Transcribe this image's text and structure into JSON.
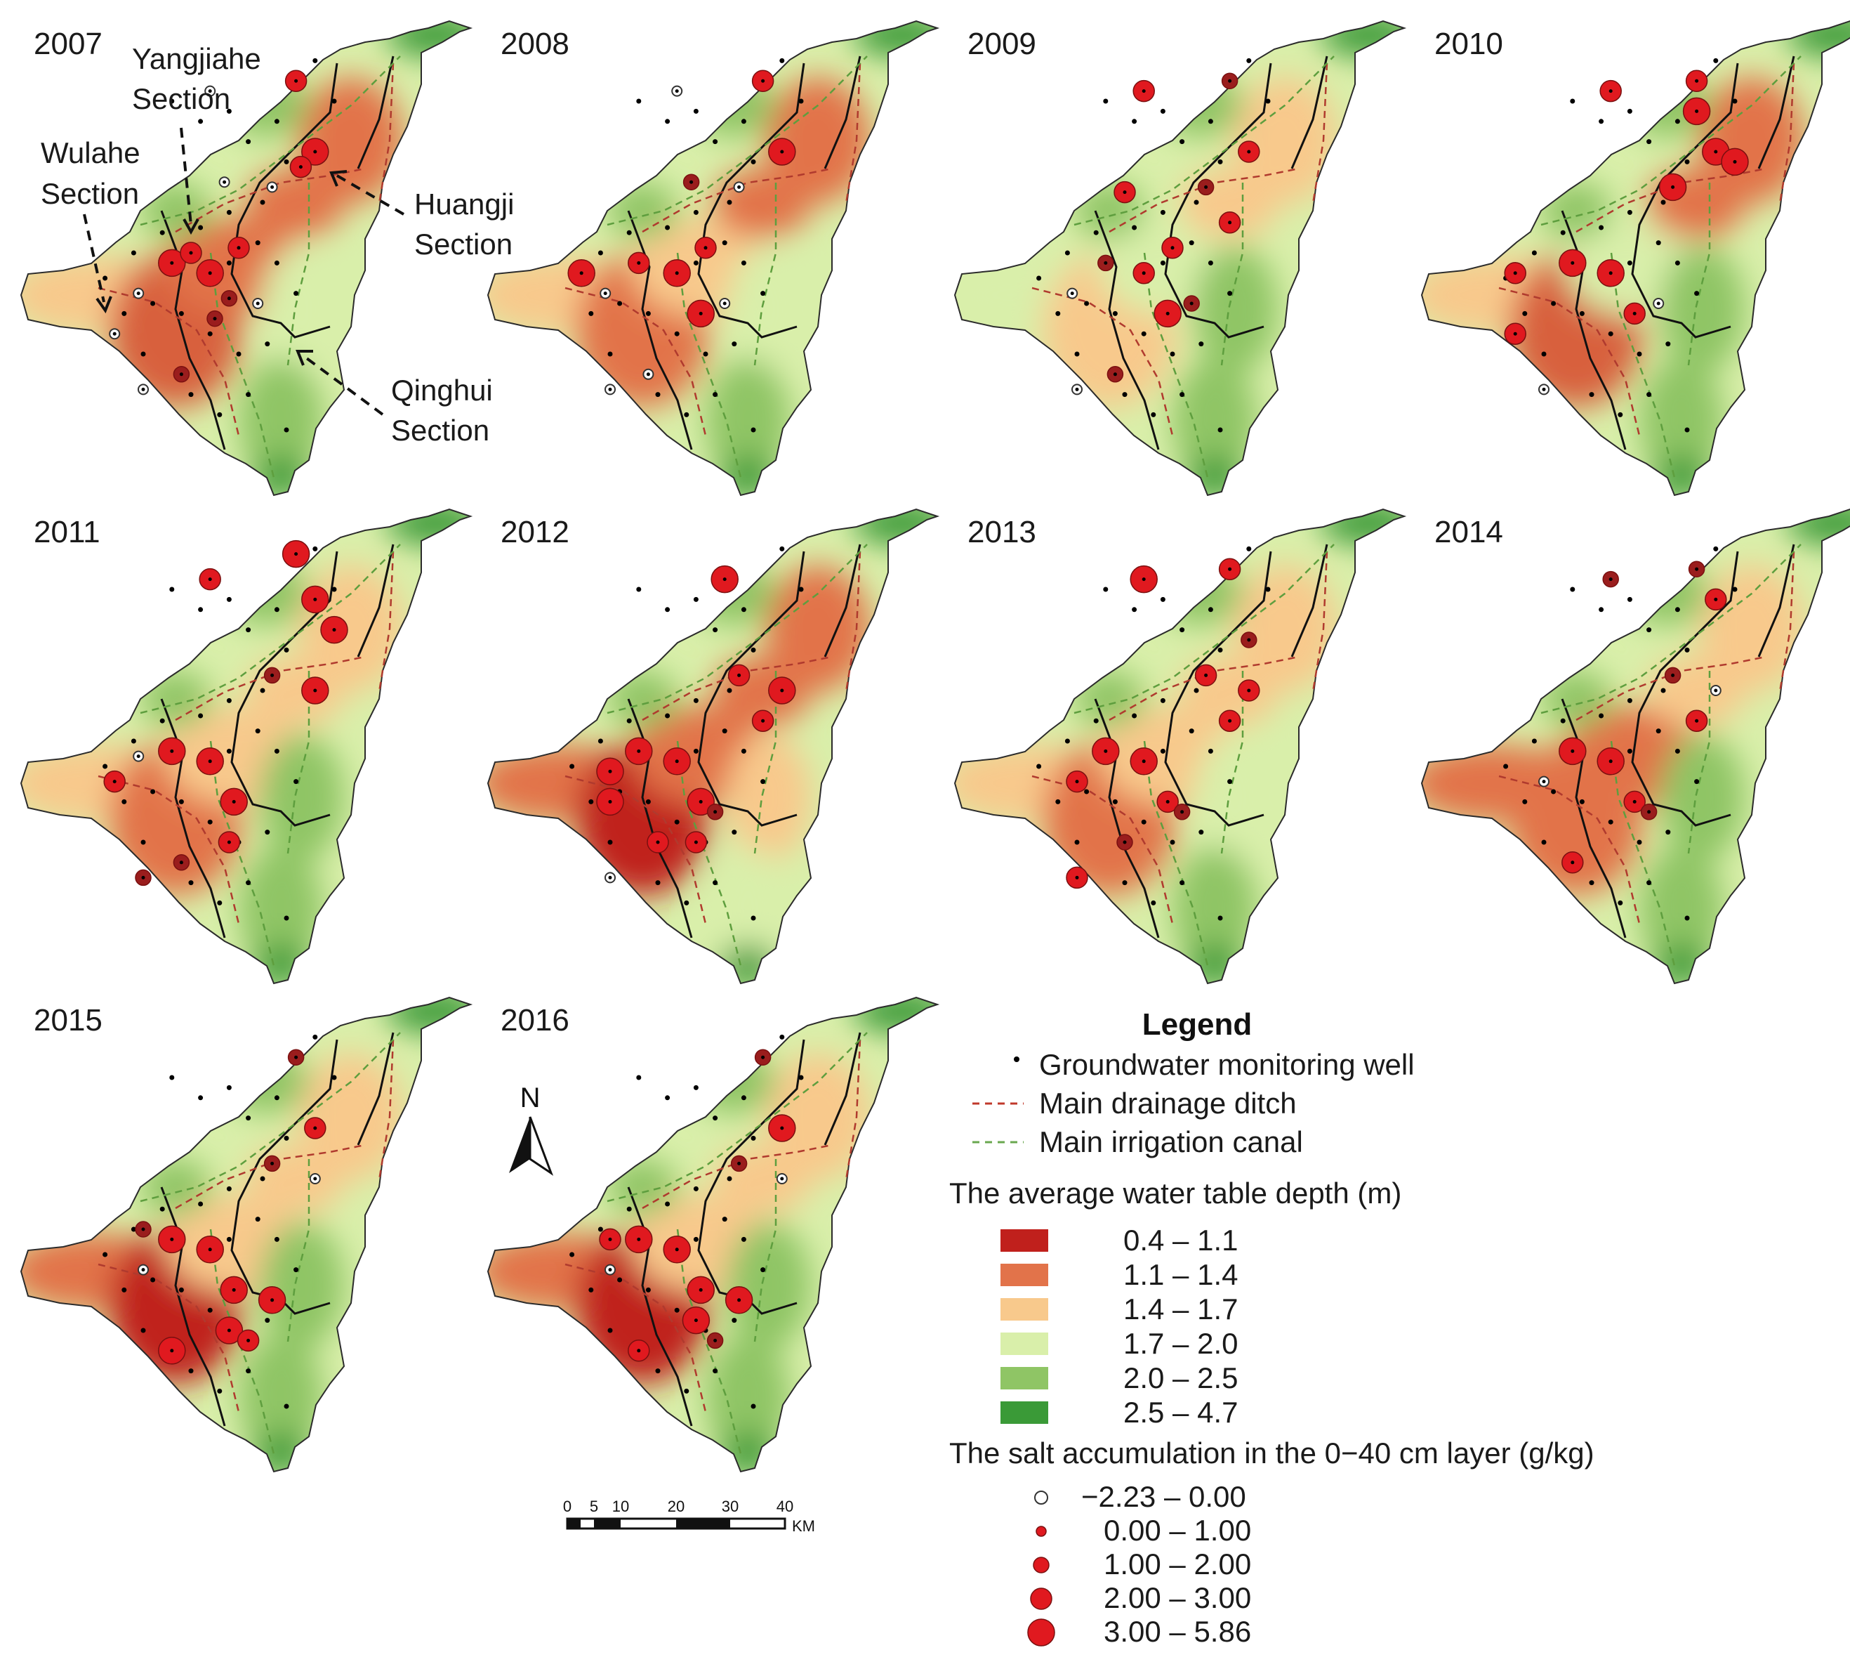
{
  "panels": [
    {
      "year": "2007",
      "profile": {
        "ne": "orange",
        "center": "orange",
        "sw": "orangeDark",
        "south": "green",
        "west": "peach",
        "east": "lightgreen"
      },
      "salt": [
        [
          0.62,
          0.16,
          2
        ],
        [
          0.66,
          0.3,
          3
        ],
        [
          0.63,
          0.33,
          2
        ],
        [
          0.36,
          0.52,
          3
        ],
        [
          0.44,
          0.54,
          3
        ],
        [
          0.5,
          0.49,
          2
        ],
        [
          0.48,
          0.59,
          1
        ],
        [
          0.24,
          0.66,
          0
        ],
        [
          0.29,
          0.58,
          0
        ],
        [
          0.45,
          0.63,
          1
        ],
        [
          0.38,
          0.74,
          1
        ],
        [
          0.54,
          0.6,
          0
        ],
        [
          0.3,
          0.77,
          0
        ],
        [
          0.47,
          0.36,
          0
        ],
        [
          0.44,
          0.18,
          0
        ],
        [
          0.57,
          0.37,
          0
        ],
        [
          0.4,
          0.5,
          2
        ]
      ]
    },
    {
      "year": "2008",
      "profile": {
        "ne": "orange",
        "center": "peach",
        "sw": "orange",
        "south": "green",
        "west": "peach",
        "east": "lightgreen"
      },
      "salt": [
        [
          0.62,
          0.16,
          2
        ],
        [
          0.66,
          0.3,
          3
        ],
        [
          0.36,
          0.52,
          2
        ],
        [
          0.44,
          0.54,
          3
        ],
        [
          0.49,
          0.62,
          3
        ],
        [
          0.5,
          0.49,
          2
        ],
        [
          0.24,
          0.54,
          3
        ],
        [
          0.29,
          0.58,
          0
        ],
        [
          0.3,
          0.77,
          0
        ],
        [
          0.38,
          0.74,
          0
        ],
        [
          0.54,
          0.6,
          0
        ],
        [
          0.44,
          0.18,
          0
        ],
        [
          0.57,
          0.37,
          0
        ],
        [
          0.47,
          0.36,
          1
        ]
      ]
    },
    {
      "year": "2009",
      "profile": {
        "ne": "peach",
        "center": "lightgreen",
        "sw": "peach",
        "south": "green",
        "west": "lightgreen",
        "east": "green"
      },
      "salt": [
        [
          0.62,
          0.16,
          1
        ],
        [
          0.5,
          0.49,
          2
        ],
        [
          0.44,
          0.54,
          2
        ],
        [
          0.49,
          0.62,
          3
        ],
        [
          0.57,
          0.37,
          1
        ],
        [
          0.66,
          0.3,
          2
        ],
        [
          0.4,
          0.38,
          2
        ],
        [
          0.29,
          0.58,
          0
        ],
        [
          0.3,
          0.77,
          0
        ],
        [
          0.38,
          0.74,
          1
        ],
        [
          0.54,
          0.6,
          1
        ],
        [
          0.44,
          0.18,
          2
        ],
        [
          0.36,
          0.52,
          1
        ],
        [
          0.62,
          0.44,
          2
        ]
      ]
    },
    {
      "year": "2010",
      "profile": {
        "ne": "orange",
        "center": "lightgreen",
        "sw": "orangeDark",
        "south": "green",
        "west": "peach",
        "east": "green"
      },
      "salt": [
        [
          0.62,
          0.16,
          2
        ],
        [
          0.66,
          0.3,
          3
        ],
        [
          0.7,
          0.32,
          3
        ],
        [
          0.36,
          0.52,
          3
        ],
        [
          0.44,
          0.54,
          3
        ],
        [
          0.49,
          0.62,
          2
        ],
        [
          0.24,
          0.54,
          2
        ],
        [
          0.24,
          0.66,
          2
        ],
        [
          0.3,
          0.77,
          0
        ],
        [
          0.54,
          0.6,
          0
        ],
        [
          0.44,
          0.18,
          2
        ],
        [
          0.57,
          0.37,
          3
        ],
        [
          0.62,
          0.22,
          3
        ]
      ]
    },
    {
      "year": "2011",
      "profile": {
        "ne": "peach",
        "center": "peach",
        "sw": "orange",
        "south": "green",
        "west": "peach",
        "east": "green"
      },
      "salt": [
        [
          0.62,
          0.13,
          3
        ],
        [
          0.66,
          0.22,
          3
        ],
        [
          0.7,
          0.28,
          3
        ],
        [
          0.66,
          0.4,
          3
        ],
        [
          0.36,
          0.52,
          3
        ],
        [
          0.44,
          0.54,
          3
        ],
        [
          0.49,
          0.62,
          3
        ],
        [
          0.48,
          0.7,
          2
        ],
        [
          0.24,
          0.58,
          2
        ],
        [
          0.3,
          0.77,
          1
        ],
        [
          0.44,
          0.18,
          2
        ],
        [
          0.57,
          0.37,
          1
        ],
        [
          0.29,
          0.53,
          0
        ],
        [
          0.38,
          0.74,
          1
        ]
      ]
    },
    {
      "year": "2012",
      "profile": {
        "ne": "orange",
        "center": "orange",
        "sw": "red",
        "south": "lightgreen",
        "west": "orange",
        "east": "peach"
      },
      "salt": [
        [
          0.54,
          0.18,
          3
        ],
        [
          0.66,
          0.4,
          3
        ],
        [
          0.62,
          0.46,
          2
        ],
        [
          0.36,
          0.52,
          3
        ],
        [
          0.44,
          0.54,
          3
        ],
        [
          0.49,
          0.62,
          3
        ],
        [
          0.48,
          0.7,
          2
        ],
        [
          0.3,
          0.56,
          3
        ],
        [
          0.3,
          0.62,
          3
        ],
        [
          0.3,
          0.77,
          0
        ],
        [
          0.57,
          0.37,
          2
        ],
        [
          0.52,
          0.64,
          1
        ],
        [
          0.4,
          0.7,
          2
        ]
      ]
    },
    {
      "year": "2013",
      "profile": {
        "ne": "peach",
        "center": "peach",
        "sw": "orange",
        "south": "green",
        "west": "peach",
        "east": "lightgreen"
      },
      "salt": [
        [
          0.62,
          0.16,
          2
        ],
        [
          0.44,
          0.18,
          3
        ],
        [
          0.36,
          0.52,
          3
        ],
        [
          0.44,
          0.54,
          3
        ],
        [
          0.49,
          0.62,
          2
        ],
        [
          0.3,
          0.58,
          2
        ],
        [
          0.3,
          0.77,
          2
        ],
        [
          0.57,
          0.37,
          2
        ],
        [
          0.66,
          0.4,
          2
        ],
        [
          0.62,
          0.46,
          2
        ],
        [
          0.52,
          0.64,
          1
        ],
        [
          0.4,
          0.7,
          1
        ],
        [
          0.66,
          0.3,
          1
        ]
      ]
    },
    {
      "year": "2014",
      "profile": {
        "ne": "peach",
        "center": "orange",
        "sw": "orange",
        "south": "green",
        "west": "orange",
        "east": "green"
      },
      "salt": [
        [
          0.62,
          0.16,
          1
        ],
        [
          0.66,
          0.22,
          2
        ],
        [
          0.36,
          0.52,
          3
        ],
        [
          0.44,
          0.54,
          3
        ],
        [
          0.49,
          0.62,
          2
        ],
        [
          0.3,
          0.58,
          0
        ],
        [
          0.36,
          0.74,
          2
        ],
        [
          0.57,
          0.37,
          1
        ],
        [
          0.66,
          0.4,
          0
        ],
        [
          0.62,
          0.46,
          2
        ],
        [
          0.52,
          0.64,
          1
        ],
        [
          0.44,
          0.18,
          1
        ]
      ]
    },
    {
      "year": "2015",
      "profile": {
        "ne": "peach",
        "center": "peach",
        "sw": "red",
        "south": "green",
        "west": "orange",
        "east": "green"
      },
      "salt": [
        [
          0.62,
          0.16,
          1
        ],
        [
          0.66,
          0.3,
          2
        ],
        [
          0.36,
          0.52,
          3
        ],
        [
          0.44,
          0.54,
          3
        ],
        [
          0.49,
          0.62,
          3
        ],
        [
          0.48,
          0.7,
          3
        ],
        [
          0.3,
          0.58,
          0
        ],
        [
          0.36,
          0.74,
          3
        ],
        [
          0.57,
          0.64,
          3
        ],
        [
          0.57,
          0.37,
          1
        ],
        [
          0.66,
          0.4,
          0
        ],
        [
          0.52,
          0.72,
          2
        ],
        [
          0.3,
          0.5,
          1
        ]
      ]
    },
    {
      "year": "2016",
      "profile": {
        "ne": "peach",
        "center": "peach",
        "sw": "red",
        "south": "green",
        "west": "orange",
        "east": "green"
      },
      "salt": [
        [
          0.62,
          0.16,
          1
        ],
        [
          0.66,
          0.3,
          3
        ],
        [
          0.36,
          0.52,
          3
        ],
        [
          0.44,
          0.54,
          3
        ],
        [
          0.49,
          0.62,
          3
        ],
        [
          0.48,
          0.68,
          3
        ],
        [
          0.3,
          0.58,
          0
        ],
        [
          0.3,
          0.52,
          2
        ],
        [
          0.36,
          0.74,
          2
        ],
        [
          0.57,
          0.64,
          3
        ],
        [
          0.57,
          0.37,
          1
        ],
        [
          0.66,
          0.4,
          0
        ],
        [
          0.52,
          0.72,
          1
        ]
      ]
    }
  ],
  "annotations": {
    "yangjiahe": [
      "Yangjiahe",
      "Section"
    ],
    "wulahe": [
      "Wulahe",
      "Section"
    ],
    "huangji": [
      "Huangji",
      "Section"
    ],
    "qinghui": [
      "Qinghui",
      "Section"
    ]
  },
  "north_arrow": "N",
  "scale_bar": {
    "ticks": [
      "0",
      "5",
      "10",
      "20",
      "30",
      "40"
    ],
    "unit": "KM"
  },
  "legend": {
    "title": "Legend",
    "symbols": [
      {
        "label": "Groundwater monitoring well",
        "kind": "dot",
        "color": "#000000"
      },
      {
        "label": "Main drainage ditch",
        "kind": "dash",
        "color": "#c0392b"
      },
      {
        "label": "Main irrigation canal",
        "kind": "dash",
        "color": "#6aa84f"
      }
    ],
    "depth_title": "The average water table depth (m)",
    "depth_classes": [
      {
        "label": "0.4 – 1.1",
        "color": "#c0201c"
      },
      {
        "label": "1.1 – 1.4",
        "color": "#e2734a"
      },
      {
        "label": "1.4 – 1.7",
        "color": "#f8c98c"
      },
      {
        "label": "1.7 – 2.0",
        "color": "#d9efaa"
      },
      {
        "label": "2.0 – 2.5",
        "color": "#8fc565"
      },
      {
        "label": "2.5 – 4.7",
        "color": "#3a9a37"
      }
    ],
    "salt_title": "The salt accumulation in the 0−40 cm layer (g/kg)",
    "salt_classes": [
      {
        "label": "−2.23 – 0.00",
        "color": "#ffffff"
      },
      {
        "label": "0.00 – 1.00",
        "color": "#e0191f"
      },
      {
        "label": "1.00 – 2.00",
        "color": "#e0191f"
      },
      {
        "label": "2.00 – 3.00",
        "color": "#e0191f"
      },
      {
        "label": "3.00 – 5.86",
        "color": "#e0191f"
      }
    ]
  }
}
